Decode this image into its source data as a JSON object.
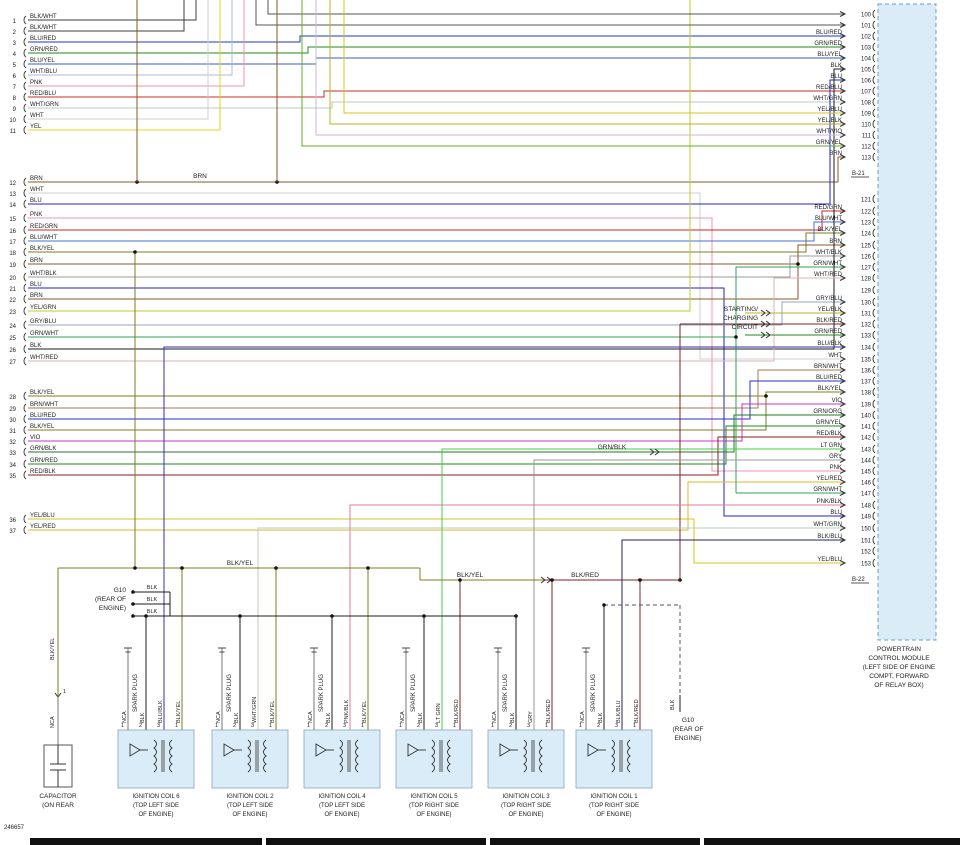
{
  "meta": {
    "doc_number": "246657"
  },
  "pcm": {
    "note_lines": [
      "POWERTRAIN",
      "CONTROL MODULE",
      "(LEFT SIDE OF ENGINE",
      "COMPT, FORWARD",
      "OF RELAY BOX)"
    ],
    "connector_top": "B-21",
    "connector_bottom": "B-22",
    "fill": "#d9ecf7"
  },
  "notes": {
    "starting_charging": [
      "STARTING/",
      "CHARGING",
      "CIRCUIT"
    ],
    "g10_left": [
      "G10",
      "(REAR OF",
      "ENGINE)"
    ],
    "g10_right": [
      "G10",
      "(REAR OF",
      "ENGINE)"
    ],
    "capacitor": [
      "CAPACITOR",
      "(ON REAR"
    ]
  },
  "inline_labels": {
    "brn_mid": "BRN",
    "grn_blk_mid": "GRN/BLK",
    "blk_yel_bus1": "BLK/YEL",
    "blk_yel_bus2": "BLK/YEL",
    "blk_red_bus": "BLK/RED",
    "cap_wire": "BLK/YEL",
    "cap_splice_pin": "1",
    "cap_bottom_wire": "NCA",
    "g10_right_wire": "BLK",
    "g10_left_wires": [
      "BLK",
      "BLK",
      "BLK"
    ]
  },
  "left_pins": [
    {
      "pin": "1",
      "label": "BLK/WHT"
    },
    {
      "pin": "2",
      "label": "BLK/WHT"
    },
    {
      "pin": "3",
      "label": "BLU/RED"
    },
    {
      "pin": "4",
      "label": "GRN/RED"
    },
    {
      "pin": "5",
      "label": "BLU/YEL"
    },
    {
      "pin": "6",
      "label": "WHT/BLU"
    },
    {
      "pin": "7",
      "label": "PNK"
    },
    {
      "pin": "8",
      "label": "RED/BLU"
    },
    {
      "pin": "9",
      "label": "WHT/GRN"
    },
    {
      "pin": "10",
      "label": "WHT"
    },
    {
      "pin": "11",
      "label": "YEL"
    },
    {
      "pin": "12",
      "label": "BRN"
    },
    {
      "pin": "13",
      "label": "WHT"
    },
    {
      "pin": "14",
      "label": "BLU"
    },
    {
      "pin": "15",
      "label": "PNK"
    },
    {
      "pin": "16",
      "label": "RED/GRN"
    },
    {
      "pin": "17",
      "label": "BLU/WHT"
    },
    {
      "pin": "18",
      "label": "BLK/YEL"
    },
    {
      "pin": "19",
      "label": "BRN"
    },
    {
      "pin": "20",
      "label": "WHT/BLK"
    },
    {
      "pin": "21",
      "label": "BLU"
    },
    {
      "pin": "22",
      "label": "BRN"
    },
    {
      "pin": "23",
      "label": "YEL/GRN"
    },
    {
      "pin": "24",
      "label": "GRY/BLU"
    },
    {
      "pin": "25",
      "label": "GRN/WHT"
    },
    {
      "pin": "26",
      "label": "BLK"
    },
    {
      "pin": "27",
      "label": "WHT/RED"
    },
    {
      "pin": "28",
      "label": "BLK/YEL"
    },
    {
      "pin": "29",
      "label": "BRN/WHT"
    },
    {
      "pin": "30",
      "label": "BLU/RED"
    },
    {
      "pin": "31",
      "label": "BLK/YEL"
    },
    {
      "pin": "32",
      "label": "VIO"
    },
    {
      "pin": "33",
      "label": "GRN/BLK"
    },
    {
      "pin": "34",
      "label": "GRN/RED"
    },
    {
      "pin": "35",
      "label": "RED/BLK"
    },
    {
      "pin": "36",
      "label": "YEL/BLU"
    },
    {
      "pin": "37",
      "label": "YEL/RED"
    }
  ],
  "right_pins": [
    {
      "pin": "100",
      "label": ""
    },
    {
      "pin": "101",
      "label": ""
    },
    {
      "pin": "102",
      "label": "BLU/RED"
    },
    {
      "pin": "103",
      "label": "GRN/RED"
    },
    {
      "pin": "104",
      "label": "BLU/YEL"
    },
    {
      "pin": "105",
      "label": "BLK"
    },
    {
      "pin": "106",
      "label": "BLU"
    },
    {
      "pin": "107",
      "label": "RED/BLU"
    },
    {
      "pin": "108",
      "label": "WHT/GRN"
    },
    {
      "pin": "109",
      "label": "YEL/BLU"
    },
    {
      "pin": "110",
      "label": "YEL/BLK"
    },
    {
      "pin": "111",
      "label": "WHT/VIO"
    },
    {
      "pin": "112",
      "label": "GRN/YEL"
    },
    {
      "pin": "113",
      "label": "BRN"
    },
    {
      "pin": "121",
      "label": ""
    },
    {
      "pin": "122",
      "label": "RED/GRN"
    },
    {
      "pin": "123",
      "label": "BLU/WHT"
    },
    {
      "pin": "124",
      "label": "BLK/YEL"
    },
    {
      "pin": "125",
      "label": "BRN"
    },
    {
      "pin": "126",
      "label": "WHT/BLK"
    },
    {
      "pin": "127",
      "label": "GRN/WHT"
    },
    {
      "pin": "128",
      "label": "WHT/RED"
    },
    {
      "pin": "129",
      "label": ""
    },
    {
      "pin": "130",
      "label": "GRY/BLU"
    },
    {
      "pin": "131",
      "label": "YEL/BLK"
    },
    {
      "pin": "132",
      "label": "BLK/RED"
    },
    {
      "pin": "133",
      "label": "GRN/RED"
    },
    {
      "pin": "134",
      "label": "BLU/BLK"
    },
    {
      "pin": "135",
      "label": "WHT"
    },
    {
      "pin": "136",
      "label": "BRN/WHT"
    },
    {
      "pin": "137",
      "label": "BLU/RED"
    },
    {
      "pin": "138",
      "label": "BLK/YEL"
    },
    {
      "pin": "139",
      "label": "VIO"
    },
    {
      "pin": "140",
      "label": "GRN/ORG"
    },
    {
      "pin": "141",
      "label": "GRN/YEL"
    },
    {
      "pin": "142",
      "label": "RED/BLK"
    },
    {
      "pin": "143",
      "label": "LT GRN"
    },
    {
      "pin": "144",
      "label": "GRY"
    },
    {
      "pin": "145",
      "label": "PNK"
    },
    {
      "pin": "146",
      "label": "YEL/RED"
    },
    {
      "pin": "147",
      "label": "GRN/WHT"
    },
    {
      "pin": "148",
      "label": "PNK/BLK"
    },
    {
      "pin": "149",
      "label": "BLU"
    },
    {
      "pin": "150",
      "label": "WHT/GRN"
    },
    {
      "pin": "151",
      "label": "BLK/BLU"
    },
    {
      "pin": "152",
      "label": ""
    },
    {
      "pin": "153",
      "label": "YEL/BLU"
    }
  ],
  "coils": [
    {
      "name": "IGNITION COIL 6",
      "loc1": "(TOP LEFT SIDE",
      "loc2": "OF ENGINE)",
      "spark_label": "SPARK PLUG",
      "pin_numbers": [
        "1",
        "2",
        "3",
        "1"
      ],
      "pins": [
        "NCA",
        "BLK",
        "BLU/BLK",
        "BLK/YEL"
      ]
    },
    {
      "name": "IGNITION COIL 2",
      "loc1": "(TOP LEFT SIDE",
      "loc2": "OF ENGINE)",
      "spark_label": "SPARK PLUG",
      "pin_numbers": [
        "1",
        "2",
        "3",
        "1"
      ],
      "pins": [
        "NCA",
        "BLK",
        "WHT/GRN",
        "BLK/YEL"
      ]
    },
    {
      "name": "IGNITION COIL 4",
      "loc1": "(TOP LEFT SIDE",
      "loc2": "OF ENGINE)",
      "spark_label": "SPARK PLUG",
      "pin_numbers": [
        "1",
        "2",
        "3",
        "1"
      ],
      "pins": [
        "NCA",
        "BLK",
        "PNK/BLK",
        "BLK/YEL"
      ]
    },
    {
      "name": "IGNITION COIL 5",
      "loc1": "(TOP RIGHT SIDE",
      "loc2": "OF ENGINE)",
      "spark_label": "SPARK PLUG",
      "pin_numbers": [
        "1",
        "2",
        "3",
        "1"
      ],
      "pins": [
        "NCA",
        "BLK",
        "LT GRN",
        "BLK/RED"
      ]
    },
    {
      "name": "IGNITION COIL 3",
      "loc1": "(TOP RIGHT SIDE",
      "loc2": "OF ENGINE)",
      "spark_label": "SPARK PLUG",
      "pin_numbers": [
        "1",
        "2",
        "3",
        "1"
      ],
      "pins": [
        "NCA",
        "BLK",
        "GRY",
        "BLK/RED"
      ]
    },
    {
      "name": "IGNITION COIL 1",
      "loc1": "(TOP RIGHT SIDE",
      "loc2": "OF ENGINE)",
      "spark_label": "SPARK PLUG",
      "pin_numbers": [
        "1",
        "2",
        "3",
        "1"
      ],
      "pins": [
        "NCA",
        "BLK",
        "BLK/BLU",
        "BLK/RED"
      ]
    }
  ],
  "palette": {
    "BLK": "#1c1c1c",
    "BLK/WHT": "#3c3c3c",
    "BLU/RED": "#2233cc",
    "GRN/RED": "#1f8a1f",
    "BLU/YEL": "#3a57d6",
    "WHT/BLU": "#aabbd8",
    "PNK": "#ef93b4",
    "RED/BLU": "#cc2a2a",
    "WHT/GRN": "#b9cfb9",
    "WHT": "#cfcfcf",
    "YEL": "#e3d41c",
    "BRN": "#8a5a2a",
    "BLU": "#2222cc",
    "RED/GRN": "#cc2222",
    "BLU/WHT": "#4a6ede",
    "BLK/YEL": "#7c7c22",
    "WHT/BLK": "#9b9b9b",
    "YEL/GRN": "#bccc2e",
    "GRY/BLU": "#93a7bd",
    "GRN/WHT": "#2ea35a",
    "WHT/RED": "#d9b4b4",
    "BRN/WHT": "#a97a4a",
    "VIO": "#c53ac5",
    "GRN/BLK": "#237a23",
    "RED/BLK": "#8d1f1f",
    "YEL/BLU": "#d6c41e",
    "YEL/RED": "#dfb92a",
    "LT GRN": "#43cf43",
    "GRY": "#9a9a9a",
    "PNK/BLK": "#e27ba2",
    "GRN/ORG": "#3f9e2e",
    "GRN/YEL": "#58b022",
    "BLU/BLK": "#3333a6",
    "BLK/BLU": "#23235e",
    "BLK/RED": "#7c2424",
    "WHT/VIO": "#cdb6dd",
    "YEL/BLK": "#bdb021",
    "NCA": "#777777"
  }
}
